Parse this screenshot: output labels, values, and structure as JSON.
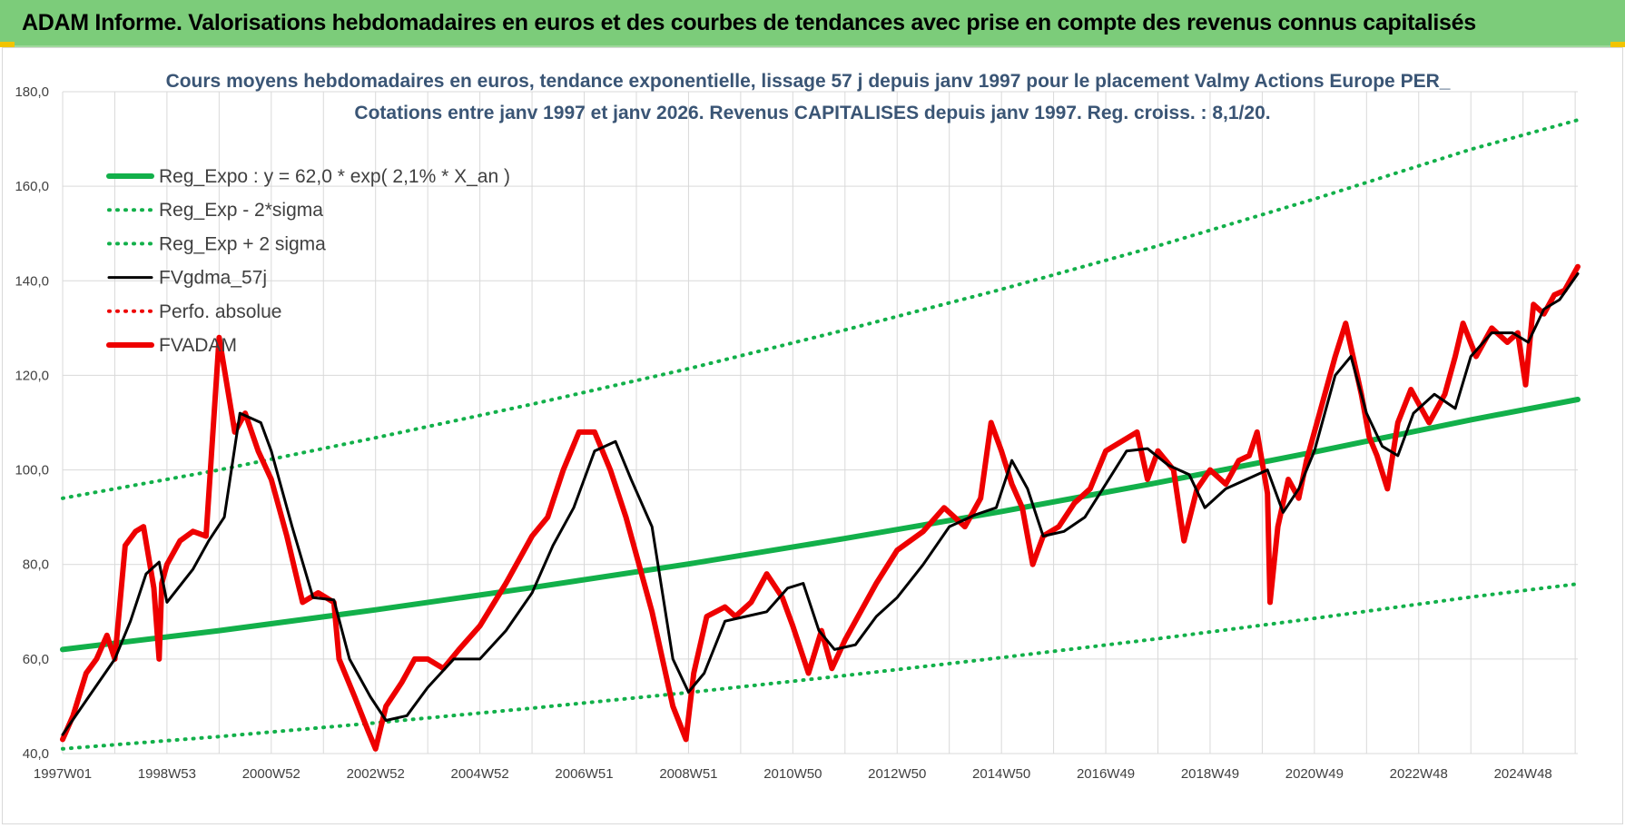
{
  "header": {
    "title": "ADAM Informe. Valorisations hebdomadaires en euros et des courbes de tendances avec prise en compte des revenus connus capitalisés"
  },
  "colors": {
    "header_bg": "#7ccc7a",
    "title_text": "#3a5575",
    "trend": "#12b04a",
    "band": "#12b04a",
    "smooth": "#000000",
    "series": "#ee0000",
    "perf": "#ee0000",
    "grid": "#d9d9d9"
  },
  "chart_data": {
    "type": "line",
    "title": "Cours moyens hebdomadaires en euros, tendance exponentielle, lissage 57 j depuis janv 1997 pour le placement Valmy Actions Europe PER_",
    "subtitle": "Cotations entre janv 1997 et janv 2026. Revenus CAPITALISES depuis janv 1997. Reg. croiss. : 8,1/20.",
    "xlabel": "",
    "ylabel": "",
    "ylim": [
      40,
      180
    ],
    "xlim": [
      1997.0,
      2026.05
    ],
    "yticks": [
      "40,0",
      "60,0",
      "80,0",
      "100,0",
      "120,0",
      "140,0",
      "160,0",
      "180,0"
    ],
    "xticks": [
      {
        "label": "1997W01",
        "x": 1997.0
      },
      {
        "label": "1998W53",
        "x": 1999.0
      },
      {
        "label": "2000W52",
        "x": 2001.0
      },
      {
        "label": "2002W52",
        "x": 2003.0
      },
      {
        "label": "2004W52",
        "x": 2005.0
      },
      {
        "label": "2006W51",
        "x": 2007.0
      },
      {
        "label": "2008W51",
        "x": 2009.0
      },
      {
        "label": "2010W50",
        "x": 2011.0
      },
      {
        "label": "2012W50",
        "x": 2013.0
      },
      {
        "label": "2014W50",
        "x": 2015.0
      },
      {
        "label": "2016W49",
        "x": 2017.0
      },
      {
        "label": "2018W49",
        "x": 2019.0
      },
      {
        "label": "2020W49",
        "x": 2021.0
      },
      {
        "label": "2022W48",
        "x": 2023.0
      },
      {
        "label": "2024W48",
        "x": 2025.0
      }
    ],
    "grid": true,
    "legend_position": "top-left",
    "series": [
      {
        "name": "Reg_Expo : y = 62,0 * exp( 2,1% *  X_an )",
        "style": "solid-thick",
        "color": "#12b04a",
        "x": [
          1997.0,
          2000.0,
          2003.0,
          2006.0,
          2009.0,
          2012.0,
          2015.0,
          2018.0,
          2021.0,
          2024.0,
          2026.05
        ],
        "y": [
          62.0,
          66.0,
          70.4,
          75.1,
          80.1,
          85.5,
          91.2,
          97.3,
          103.8,
          110.6,
          114.9
        ]
      },
      {
        "name": "Reg_Exp - 2*sigma",
        "style": "dotted",
        "color": "#12b04a",
        "x": [
          1997.0,
          2000.0,
          2003.0,
          2006.0,
          2009.0,
          2012.0,
          2015.0,
          2018.0,
          2021.0,
          2024.0,
          2026.05
        ],
        "y": [
          41.0,
          43.6,
          46.5,
          49.6,
          52.9,
          56.5,
          60.3,
          64.3,
          68.6,
          73.1,
          75.9
        ]
      },
      {
        "name": "Reg_Exp + 2 sigma",
        "style": "dotted",
        "color": "#12b04a",
        "x": [
          1997.0,
          2000.0,
          2003.0,
          2006.0,
          2009.0,
          2012.0,
          2015.0,
          2018.0,
          2021.0,
          2024.0,
          2026.05
        ],
        "y": [
          94.0,
          100.0,
          106.8,
          113.9,
          121.4,
          129.6,
          138.2,
          147.4,
          157.3,
          167.8,
          174.0
        ]
      },
      {
        "name": "FVgdma_57j",
        "style": "solid",
        "color": "#000000",
        "x": [
          1997.0,
          1997.5,
          1998.0,
          1998.3,
          1998.6,
          1998.85,
          1999.0,
          1999.5,
          1999.8,
          2000.1,
          2000.4,
          2000.8,
          2001.0,
          2001.4,
          2001.8,
          2002.2,
          2002.5,
          2002.9,
          2003.2,
          2003.6,
          2004.0,
          2004.5,
          2005.0,
          2005.5,
          2006.0,
          2006.4,
          2006.8,
          2007.2,
          2007.6,
          2007.9,
          2008.3,
          2008.7,
          2009.0,
          2009.3,
          2009.7,
          2010.1,
          2010.5,
          2010.9,
          2011.2,
          2011.5,
          2011.8,
          2012.2,
          2012.6,
          2013.0,
          2013.5,
          2014.0,
          2014.5,
          2014.9,
          2015.2,
          2015.5,
          2015.8,
          2016.2,
          2016.6,
          2017.0,
          2017.4,
          2017.8,
          2018.2,
          2018.6,
          2018.9,
          2019.3,
          2019.7,
          2020.1,
          2020.4,
          2020.7,
          2021.0,
          2021.4,
          2021.7,
          2022.0,
          2022.3,
          2022.6,
          2022.9,
          2023.3,
          2023.7,
          2024.0,
          2024.4,
          2024.8,
          2025.1,
          2025.4,
          2025.7,
          2026.05
        ],
        "y": [
          44.0,
          52.0,
          60.0,
          68.0,
          78.0,
          80.5,
          72.0,
          79.0,
          85.0,
          90.0,
          112.0,
          110.0,
          104.0,
          88.0,
          73.0,
          72.5,
          60.0,
          52.0,
          47.0,
          48.0,
          54.0,
          60.0,
          60.0,
          66.0,
          74.0,
          84.0,
          92.0,
          104.0,
          106.0,
          98.0,
          88.0,
          60.0,
          53.0,
          57.0,
          68.0,
          69.0,
          70.0,
          75.0,
          76.0,
          66.0,
          62.0,
          63.0,
          69.0,
          73.0,
          80.0,
          88.0,
          90.5,
          92.0,
          102.0,
          96.0,
          86.0,
          87.0,
          90.0,
          97.0,
          104.0,
          104.5,
          101.0,
          99.0,
          92.0,
          96.0,
          98.0,
          100.0,
          91.0,
          96.0,
          104.0,
          120.0,
          124.0,
          112.0,
          105.0,
          103.0,
          112.0,
          116.0,
          113.0,
          124.0,
          129.0,
          129.0,
          127.0,
          134.0,
          136.0,
          141.5
        ]
      },
      {
        "name": "Perfo. absolue",
        "style": "dotted",
        "color": "#ee0000",
        "x": [],
        "y": []
      },
      {
        "name": "FVADAM",
        "style": "solid-thick",
        "color": "#ee0000",
        "x": [
          1997.0,
          1997.2,
          1997.45,
          1997.65,
          1997.85,
          1998.0,
          1998.2,
          1998.4,
          1998.55,
          1998.75,
          1998.85,
          1998.9,
          1999.0,
          1999.25,
          1999.5,
          1999.75,
          2000.0,
          2000.3,
          2000.5,
          2000.75,
          2001.0,
          2001.3,
          2001.6,
          2001.9,
          2002.2,
          2002.3,
          2002.6,
          2002.85,
          2003.0,
          2003.2,
          2003.5,
          2003.75,
          2004.0,
          2004.3,
          2004.6,
          2005.0,
          2005.5,
          2006.0,
          2006.3,
          2006.6,
          2006.9,
          2007.2,
          2007.5,
          2007.8,
          2008.0,
          2008.3,
          2008.7,
          2008.95,
          2009.1,
          2009.35,
          2009.7,
          2009.9,
          2010.2,
          2010.5,
          2010.8,
          2011.0,
          2011.3,
          2011.55,
          2011.75,
          2012.0,
          2012.3,
          2012.6,
          2013.0,
          2013.5,
          2013.9,
          2014.3,
          2014.6,
          2014.8,
          2015.0,
          2015.2,
          2015.4,
          2015.6,
          2015.8,
          2016.1,
          2016.4,
          2016.7,
          2017.0,
          2017.3,
          2017.6,
          2017.8,
          2018.0,
          2018.3,
          2018.5,
          2018.75,
          2019.0,
          2019.3,
          2019.55,
          2019.75,
          2019.9,
          2020.1,
          2020.15,
          2020.3,
          2020.5,
          2020.7,
          2020.85,
          2021.1,
          2021.4,
          2021.6,
          2021.9,
          2022.05,
          2022.2,
          2022.4,
          2022.6,
          2022.85,
          2022.95,
          2023.2,
          2023.5,
          2023.7,
          2023.85,
          2024.1,
          2024.4,
          2024.7,
          2024.9,
          2025.05,
          2025.2,
          2025.4,
          2025.6,
          2025.8,
          2026.05
        ],
        "y": [
          43.0,
          48.0,
          57.0,
          60.0,
          65.0,
          60.0,
          84.0,
          87.0,
          88.0,
          75.0,
          60.0,
          76.0,
          80.0,
          85.0,
          87.0,
          86.0,
          128.0,
          108.0,
          112.0,
          104.0,
          98.0,
          86.0,
          72.0,
          74.0,
          72.0,
          60.0,
          52.0,
          45.0,
          41.0,
          50.0,
          55.0,
          60.0,
          60.0,
          58.0,
          62.0,
          67.0,
          76.0,
          86.0,
          90.0,
          100.0,
          108.0,
          108.0,
          100.0,
          90.0,
          82.0,
          70.0,
          50.0,
          43.0,
          57.0,
          69.0,
          71.0,
          69.0,
          72.0,
          78.0,
          73.0,
          67.0,
          57.0,
          66.0,
          58.0,
          64.0,
          70.0,
          76.0,
          83.0,
          87.0,
          92.0,
          88.0,
          94.0,
          110.0,
          104.0,
          97.0,
          92.0,
          80.0,
          86.0,
          88.0,
          93.0,
          96.0,
          104.0,
          106.0,
          108.0,
          98.0,
          104.0,
          100.0,
          85.0,
          96.0,
          100.0,
          97.0,
          102.0,
          103.0,
          108.0,
          95.0,
          72.0,
          88.0,
          98.0,
          94.0,
          102.0,
          112.0,
          124.0,
          131.0,
          116.0,
          107.0,
          103.0,
          96.0,
          110.0,
          117.0,
          115.0,
          110.0,
          116.0,
          124.0,
          131.0,
          124.0,
          130.0,
          127.0,
          129.0,
          118.0,
          135.0,
          133.0,
          137.0,
          138.0,
          143.0
        ]
      }
    ]
  }
}
